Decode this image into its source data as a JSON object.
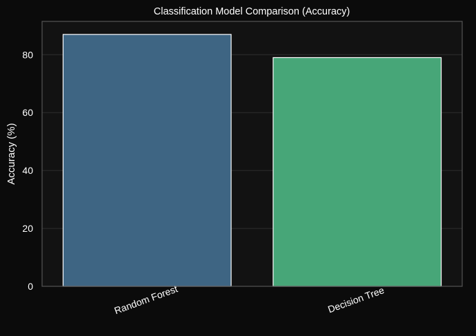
{
  "chart_data": {
    "type": "bar",
    "title": "Classification Model Comparison (Accuracy)",
    "xlabel": "",
    "ylabel": "Accuracy (%)",
    "categories": [
      "Random Forest",
      "Decision Tree"
    ],
    "values": [
      87.0,
      79.0
    ],
    "bar_colors": [
      "#3e6583",
      "#47a678"
    ],
    "ylim": [
      0,
      91.5
    ],
    "yticks": [
      0,
      20,
      40,
      60,
      80
    ],
    "grid": true,
    "x_tick_rotation": -20,
    "colors": {
      "figure_background": "#0b0b0b",
      "plot_background": "#121212",
      "grid": "#2e2e2e",
      "spine": "#555555",
      "bar_edge": "#ffffff",
      "text": "#ffffff"
    }
  }
}
